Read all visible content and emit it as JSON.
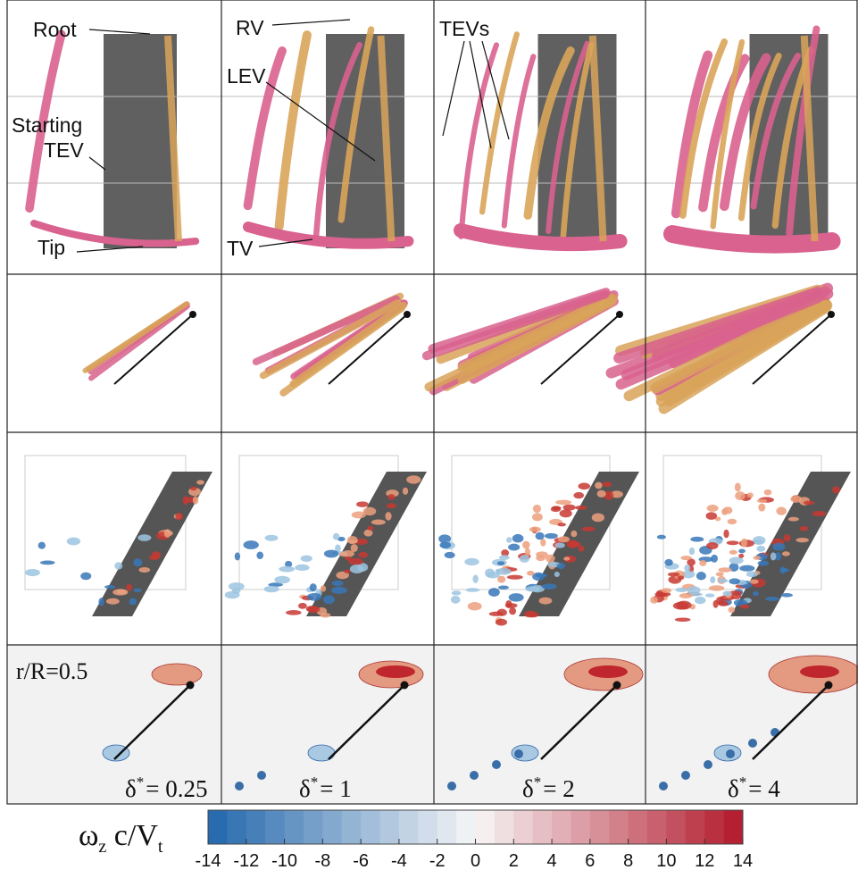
{
  "annotations": {
    "root": "Root",
    "starting": "Starting",
    "tev": "TEV",
    "tip": "Tip",
    "rv": "RV",
    "lev": "LEV",
    "tv": "TV",
    "tevs": "TEVs",
    "radius": "r/R=0.5"
  },
  "delta_labels": [
    {
      "symbol": "δ",
      "sup": "*",
      "text": "= 0.25"
    },
    {
      "symbol": "δ",
      "sup": "*",
      "text": "= 1"
    },
    {
      "symbol": "δ",
      "sup": "*",
      "text": "= 2"
    },
    {
      "symbol": "δ",
      "sup": "*",
      "text": "= 4"
    }
  ],
  "colorbar": {
    "label": [
      "ω",
      "z",
      " c/V",
      "t"
    ],
    "lim": [
      -14,
      14
    ],
    "ticks": [
      -14,
      -12,
      -10,
      -8,
      -6,
      -4,
      -2,
      0,
      2,
      4,
      6,
      8,
      10,
      12,
      14
    ]
  }
}
